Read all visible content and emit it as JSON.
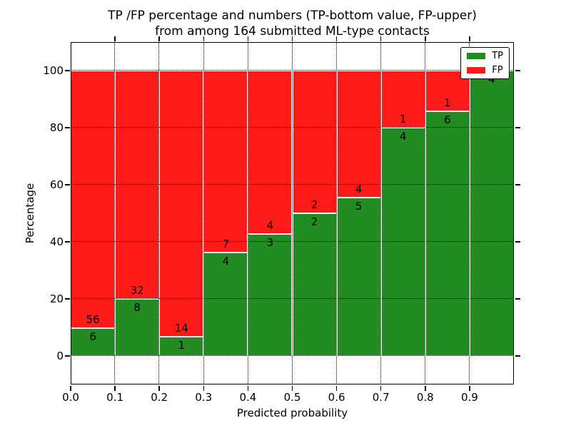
{
  "title": {
    "line1": "TP /FP percentage and numbers (TP-bottom value, FP-upper)",
    "line2": "from among 164 submitted ML-type contacts"
  },
  "axes": {
    "xlabel": "Predicted probability",
    "ylabel": "Percentage"
  },
  "legend": {
    "items": [
      {
        "label": "TP",
        "color": "#228b22"
      },
      {
        "label": "FP",
        "color": "#ff1a1a"
      }
    ]
  },
  "colors": {
    "tp": "#228b22",
    "fp": "#ff1a1a",
    "text": "#000000",
    "background": "#ffffff",
    "bar_edge": "#ffffff"
  },
  "chart_data": {
    "type": "bar",
    "stacked": true,
    "normalized_to_percent": true,
    "title": "TP /FP percentage and numbers (TP-bottom value, FP-upper) from among 164 submitted ML-type contacts",
    "xlabel": "Predicted probability",
    "ylabel": "Percentage",
    "xlim": [
      0.0,
      1.0
    ],
    "ylim": [
      -10,
      110
    ],
    "grid": "dotted both axes, drawn over bars",
    "legend_position": "upper right",
    "total_contacts": 164,
    "bin_width": 0.1,
    "bin_edges": [
      0.0,
      0.1,
      0.2,
      0.3,
      0.4,
      0.5,
      0.6,
      0.7,
      0.8,
      0.9,
      1.0
    ],
    "x_ticks": [
      0.0,
      0.1,
      0.2,
      0.3,
      0.4,
      0.5,
      0.6,
      0.7,
      0.8,
      0.9
    ],
    "x_tick_labels": [
      "0.0",
      "0.1",
      "0.2",
      "0.3",
      "0.4",
      "0.5",
      "0.6",
      "0.7",
      "0.8",
      "0.9"
    ],
    "y_ticks": [
      0,
      20,
      40,
      60,
      80,
      100
    ],
    "y_tick_labels": [
      "0",
      "20",
      "40",
      "60",
      "80",
      "100"
    ],
    "series": [
      {
        "name": "TP",
        "color": "#228b22",
        "counts": [
          6,
          8,
          1,
          4,
          3,
          2,
          5,
          4,
          6,
          4
        ]
      },
      {
        "name": "FP",
        "color": "#ff1a1a",
        "counts": [
          56,
          32,
          14,
          7,
          4,
          2,
          4,
          1,
          1,
          0
        ]
      }
    ],
    "tp_percent": [
      9.68,
      20.0,
      6.67,
      36.36,
      42.86,
      50.0,
      55.56,
      80.0,
      85.71,
      100.0
    ]
  }
}
